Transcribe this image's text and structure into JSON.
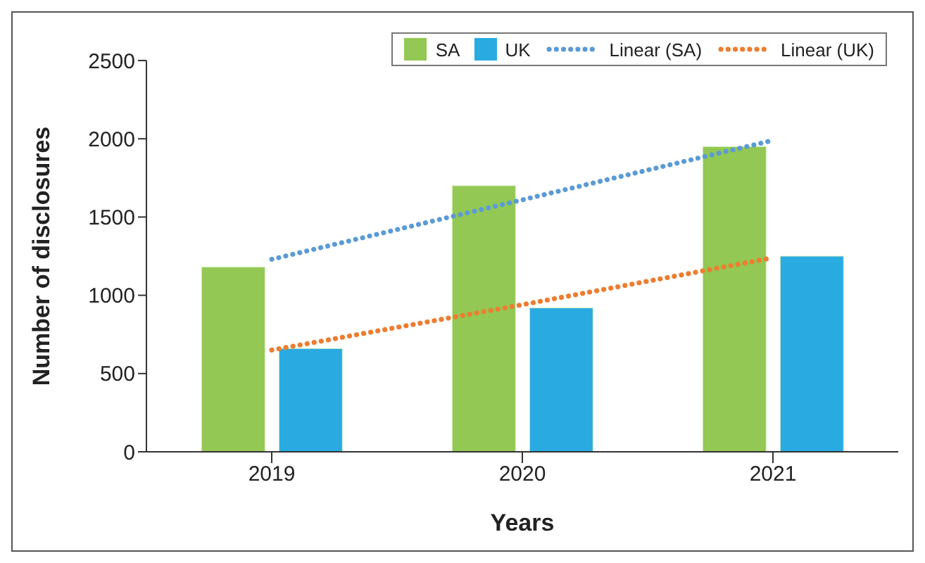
{
  "chart_data": {
    "type": "bar",
    "xlabel": "Years",
    "ylabel": "Number of disclosures",
    "categories": [
      "2019",
      "2020",
      "2021"
    ],
    "series": [
      {
        "name": "SA",
        "color": "#92c853",
        "values": [
          1180,
          1700,
          1950
        ]
      },
      {
        "name": "UK",
        "color": "#29abe2",
        "values": [
          660,
          920,
          1250
        ]
      },
      {
        "name": "Linear (SA)",
        "type": "line",
        "color": "#5b9bd5",
        "line_style": "dotted",
        "marker": "none",
        "values": [
          1230,
          1610,
          1990
        ]
      },
      {
        "name": "Linear (UK)",
        "type": "line",
        "color": "#ed7d31",
        "line_style": "dotted",
        "marker": "none",
        "values": [
          650,
          940,
          1240
        ]
      }
    ],
    "ylim": [
      0,
      2500
    ],
    "yticks": [
      0,
      500,
      1000,
      1500,
      2000,
      2500
    ],
    "grid": false,
    "legend": "top right"
  }
}
